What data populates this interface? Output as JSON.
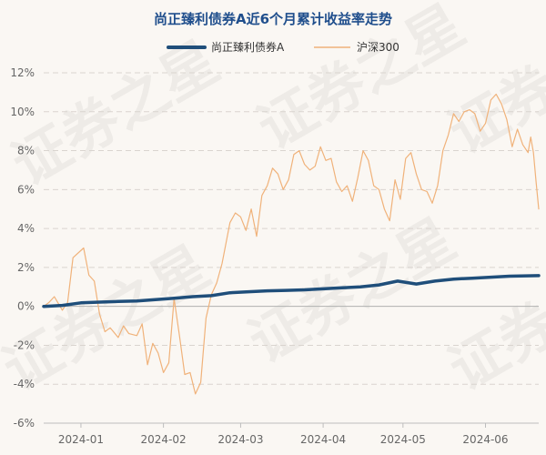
{
  "chart_data": {
    "type": "line",
    "title": "尚正臻利债券A近6个月累计收益率走势",
    "xlabel": "",
    "ylabel": "",
    "ylim": [
      -6,
      12
    ],
    "yticks": [
      -6,
      -4,
      -2,
      0,
      2,
      4,
      6,
      8,
      10,
      12
    ],
    "ytick_labels": [
      "-6%",
      "-4%",
      "-2%",
      "0%",
      "2%",
      "4%",
      "6%",
      "8%",
      "10%",
      "12%"
    ],
    "x_range": [
      "2023-12-18",
      "2024-06-21"
    ],
    "xtick_labels": [
      "2024-01",
      "2024-02",
      "2024-03",
      "2024-04",
      "2024-05",
      "2024-06"
    ],
    "xtick_dates": [
      "2024-01-01",
      "2024-02-01",
      "2024-03-01",
      "2024-04-01",
      "2024-05-01",
      "2024-06-01"
    ],
    "grid": true,
    "legend_position": "top-center",
    "watermark": "证券之星",
    "series": [
      {
        "name": "尚正臻利债券A",
        "color": "#1f4e7a",
        "line_width": 3.5,
        "points": [
          [
            "2023-12-18",
            0.0
          ],
          [
            "2023-12-25",
            0.05
          ],
          [
            "2024-01-01",
            0.18
          ],
          [
            "2024-01-08",
            0.22
          ],
          [
            "2024-01-15",
            0.25
          ],
          [
            "2024-01-22",
            0.28
          ],
          [
            "2024-01-29",
            0.35
          ],
          [
            "2024-02-05",
            0.42
          ],
          [
            "2024-02-12",
            0.5
          ],
          [
            "2024-02-19",
            0.55
          ],
          [
            "2024-02-26",
            0.7
          ],
          [
            "2024-03-04",
            0.75
          ],
          [
            "2024-03-11",
            0.8
          ],
          [
            "2024-03-18",
            0.82
          ],
          [
            "2024-03-25",
            0.85
          ],
          [
            "2024-04-01",
            0.9
          ],
          [
            "2024-04-08",
            0.95
          ],
          [
            "2024-04-15",
            1.0
          ],
          [
            "2024-04-22",
            1.1
          ],
          [
            "2024-04-29",
            1.3
          ],
          [
            "2024-05-06",
            1.15
          ],
          [
            "2024-05-13",
            1.3
          ],
          [
            "2024-05-20",
            1.4
          ],
          [
            "2024-05-27",
            1.45
          ],
          [
            "2024-06-03",
            1.5
          ],
          [
            "2024-06-10",
            1.55
          ],
          [
            "2024-06-21",
            1.58
          ]
        ]
      },
      {
        "name": "沪深300",
        "color": "#f0b27a",
        "line_width": 1.2,
        "points": [
          [
            "2023-12-18",
            0.0
          ],
          [
            "2023-12-20",
            0.2
          ],
          [
            "2023-12-22",
            0.5
          ],
          [
            "2023-12-25",
            -0.2
          ],
          [
            "2023-12-27",
            0.2
          ],
          [
            "2023-12-29",
            2.5
          ],
          [
            "2024-01-02",
            3.0
          ],
          [
            "2024-01-04",
            1.6
          ],
          [
            "2024-01-06",
            1.3
          ],
          [
            "2024-01-08",
            -0.4
          ],
          [
            "2024-01-10",
            -1.3
          ],
          [
            "2024-01-12",
            -1.1
          ],
          [
            "2024-01-15",
            -1.6
          ],
          [
            "2024-01-17",
            -1.0
          ],
          [
            "2024-01-19",
            -1.4
          ],
          [
            "2024-01-22",
            -1.5
          ],
          [
            "2024-01-24",
            -0.9
          ],
          [
            "2024-01-26",
            -3.0
          ],
          [
            "2024-01-28",
            -1.9
          ],
          [
            "2024-01-30",
            -2.4
          ],
          [
            "2024-02-01",
            -3.4
          ],
          [
            "2024-02-03",
            -2.9
          ],
          [
            "2024-02-05",
            0.4
          ],
          [
            "2024-02-07",
            -1.5
          ],
          [
            "2024-02-09",
            -3.5
          ],
          [
            "2024-02-11",
            -3.4
          ],
          [
            "2024-02-13",
            -4.5
          ],
          [
            "2024-02-15",
            -3.9
          ],
          [
            "2024-02-17",
            -0.6
          ],
          [
            "2024-02-19",
            0.6
          ],
          [
            "2024-02-21",
            1.2
          ],
          [
            "2024-02-23",
            2.2
          ],
          [
            "2024-02-26",
            4.3
          ],
          [
            "2024-02-28",
            4.8
          ],
          [
            "2024-03-01",
            4.6
          ],
          [
            "2024-03-03",
            3.9
          ],
          [
            "2024-03-05",
            5.0
          ],
          [
            "2024-03-07",
            3.6
          ],
          [
            "2024-03-09",
            5.7
          ],
          [
            "2024-03-11",
            6.2
          ],
          [
            "2024-03-13",
            7.1
          ],
          [
            "2024-03-15",
            6.8
          ],
          [
            "2024-03-17",
            6.0
          ],
          [
            "2024-03-19",
            6.5
          ],
          [
            "2024-03-21",
            7.8
          ],
          [
            "2024-03-23",
            8.0
          ],
          [
            "2024-03-25",
            7.3
          ],
          [
            "2024-03-27",
            7.0
          ],
          [
            "2024-03-29",
            7.2
          ],
          [
            "2024-03-31",
            8.2
          ],
          [
            "2024-04-02",
            7.5
          ],
          [
            "2024-04-04",
            7.6
          ],
          [
            "2024-04-06",
            6.4
          ],
          [
            "2024-04-08",
            5.9
          ],
          [
            "2024-04-10",
            6.2
          ],
          [
            "2024-04-12",
            5.4
          ],
          [
            "2024-04-14",
            6.6
          ],
          [
            "2024-04-16",
            8.0
          ],
          [
            "2024-04-18",
            7.5
          ],
          [
            "2024-04-20",
            6.2
          ],
          [
            "2024-04-22",
            6.0
          ],
          [
            "2024-04-24",
            5.0
          ],
          [
            "2024-04-26",
            4.4
          ],
          [
            "2024-04-28",
            6.5
          ],
          [
            "2024-04-30",
            5.5
          ],
          [
            "2024-05-02",
            7.6
          ],
          [
            "2024-05-04",
            7.9
          ],
          [
            "2024-05-06",
            6.8
          ],
          [
            "2024-05-08",
            6.0
          ],
          [
            "2024-05-10",
            5.9
          ],
          [
            "2024-05-12",
            5.3
          ],
          [
            "2024-05-14",
            6.2
          ],
          [
            "2024-05-16",
            8.0
          ],
          [
            "2024-05-18",
            8.8
          ],
          [
            "2024-05-20",
            9.9
          ],
          [
            "2024-05-22",
            9.5
          ],
          [
            "2024-05-24",
            10.0
          ],
          [
            "2024-05-26",
            10.1
          ],
          [
            "2024-05-28",
            9.9
          ],
          [
            "2024-05-30",
            9.0
          ],
          [
            "2024-06-01",
            9.4
          ],
          [
            "2024-06-03",
            10.6
          ],
          [
            "2024-06-05",
            10.9
          ],
          [
            "2024-06-07",
            10.4
          ],
          [
            "2024-06-09",
            9.6
          ],
          [
            "2024-06-11",
            8.2
          ],
          [
            "2024-06-13",
            9.1
          ],
          [
            "2024-06-15",
            8.3
          ],
          [
            "2024-06-17",
            7.9
          ],
          [
            "2024-06-18",
            8.7
          ],
          [
            "2024-06-19",
            7.9
          ],
          [
            "2024-06-20",
            6.4
          ],
          [
            "2024-06-21",
            5.0
          ]
        ]
      }
    ]
  }
}
